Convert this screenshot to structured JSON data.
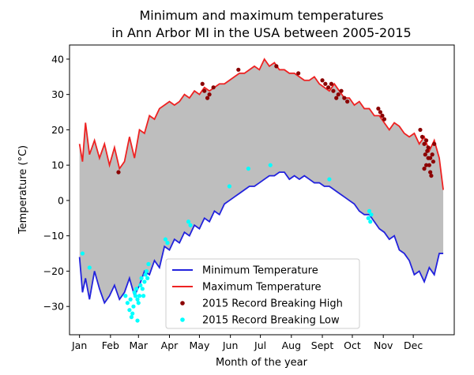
{
  "chart_data": {
    "type": "line",
    "title_line1": "Minimum and maximum temperatures",
    "title_line2": "in Ann Arbor MI in the USA between 2005-2015",
    "xlabel": "Month of the year",
    "ylabel": "Temperature (°C)",
    "xlim": [
      -10,
      375
    ],
    "ylim": [
      -38,
      44
    ],
    "yticks": [
      -30,
      -20,
      -10,
      0,
      10,
      20,
      30,
      40
    ],
    "month_ticks": [
      {
        "label": "Jan",
        "day": 0
      },
      {
        "label": "Feb",
        "day": 31
      },
      {
        "label": "Mar",
        "day": 59
      },
      {
        "label": "Apr",
        "day": 90
      },
      {
        "label": "May",
        "day": 120
      },
      {
        "label": "Jun",
        "day": 151
      },
      {
        "label": "Jul",
        "day": 181
      },
      {
        "label": "Aug",
        "day": 212
      },
      {
        "label": "Sept",
        "day": 243
      },
      {
        "label": "Oct",
        "day": 273
      },
      {
        "label": "Nov",
        "day": 304
      },
      {
        "label": "Dec",
        "day": 334
      }
    ],
    "series": [
      {
        "name": "Minimum Temperature",
        "color": "#2222dd",
        "x": [
          0,
          3,
          6,
          10,
          15,
          20,
          25,
          30,
          35,
          40,
          45,
          50,
          55,
          60,
          65,
          70,
          75,
          80,
          85,
          90,
          95,
          100,
          105,
          110,
          115,
          120,
          125,
          130,
          135,
          140,
          145,
          150,
          155,
          160,
          165,
          170,
          175,
          180,
          185,
          190,
          195,
          200,
          205,
          210,
          215,
          220,
          225,
          230,
          235,
          240,
          245,
          250,
          255,
          260,
          265,
          270,
          275,
          280,
          285,
          290,
          295,
          300,
          305,
          310,
          315,
          320,
          325,
          330,
          335,
          340,
          345,
          350,
          355,
          360,
          364
        ],
        "values": [
          -16,
          -26,
          -22,
          -28,
          -20,
          -25,
          -29,
          -27,
          -24,
          -28,
          -26,
          -22,
          -27,
          -24,
          -20,
          -21,
          -17,
          -19,
          -13,
          -14,
          -11,
          -12,
          -9,
          -10,
          -7,
          -8,
          -5,
          -6,
          -3,
          -4,
          -1,
          0,
          1,
          2,
          3,
          4,
          4,
          5,
          6,
          7,
          7,
          8,
          8,
          6,
          7,
          6,
          7,
          6,
          5,
          5,
          4,
          4,
          3,
          2,
          1,
          0,
          -1,
          -3,
          -4,
          -4,
          -6,
          -8,
          -9,
          -11,
          -10,
          -14,
          -15,
          -17,
          -21,
          -20,
          -23,
          -19,
          -21,
          -15,
          -15
        ]
      },
      {
        "name": "Maximum Temperature",
        "color": "#ee2222",
        "x": [
          0,
          3,
          6,
          10,
          15,
          20,
          25,
          30,
          35,
          40,
          45,
          50,
          55,
          60,
          65,
          70,
          75,
          80,
          85,
          90,
          95,
          100,
          105,
          110,
          115,
          120,
          125,
          130,
          135,
          140,
          145,
          150,
          155,
          160,
          165,
          170,
          175,
          180,
          185,
          190,
          195,
          200,
          205,
          210,
          215,
          220,
          225,
          230,
          235,
          240,
          245,
          250,
          255,
          260,
          265,
          270,
          275,
          280,
          285,
          290,
          295,
          300,
          305,
          310,
          315,
          320,
          325,
          330,
          335,
          340,
          345,
          350,
          355,
          360,
          364
        ],
        "values": [
          16,
          11,
          22,
          13,
          17,
          12,
          16,
          10,
          15,
          9,
          11,
          18,
          12,
          20,
          19,
          24,
          23,
          26,
          27,
          28,
          27,
          28,
          30,
          29,
          31,
          30,
          32,
          31,
          32,
          33,
          33,
          34,
          35,
          36,
          36,
          37,
          38,
          37,
          40,
          38,
          39,
          37,
          37,
          36,
          36,
          35,
          34,
          34,
          35,
          33,
          32,
          31,
          33,
          31,
          29,
          29,
          27,
          28,
          26,
          26,
          24,
          24,
          22,
          20,
          22,
          21,
          19,
          18,
          19,
          16,
          18,
          14,
          17,
          12,
          3
        ]
      }
    ],
    "scatter": [
      {
        "name": "2015 Record Breaking High",
        "color": "#8b0000",
        "points": [
          [
            39,
            8
          ],
          [
            123,
            33
          ],
          [
            125,
            31
          ],
          [
            128,
            29
          ],
          [
            130,
            30
          ],
          [
            134,
            32
          ],
          [
            159,
            37
          ],
          [
            197,
            38
          ],
          [
            219,
            36
          ],
          [
            243,
            34
          ],
          [
            246,
            33
          ],
          [
            249,
            32
          ],
          [
            252,
            33
          ],
          [
            254,
            31
          ],
          [
            257,
            29
          ],
          [
            259,
            30
          ],
          [
            262,
            31
          ],
          [
            265,
            29
          ],
          [
            268,
            28
          ],
          [
            299,
            26
          ],
          [
            301,
            25
          ],
          [
            303,
            24
          ],
          [
            305,
            23
          ],
          [
            341,
            20
          ],
          [
            343,
            18
          ],
          [
            345,
            16
          ],
          [
            346,
            13
          ],
          [
            347,
            17
          ],
          [
            348,
            14
          ],
          [
            349,
            12
          ],
          [
            350,
            10
          ],
          [
            351,
            8
          ],
          [
            352,
            7
          ],
          [
            353,
            13
          ],
          [
            354,
            11
          ],
          [
            355,
            16
          ],
          [
            345,
            9
          ],
          [
            347,
            10
          ],
          [
            349,
            15
          ],
          [
            351,
            12
          ]
        ]
      },
      {
        "name": "2015 Record Breaking Low",
        "color": "#00ffff",
        "points": [
          [
            3,
            -15
          ],
          [
            10,
            -19
          ],
          [
            46,
            -27
          ],
          [
            48,
            -29
          ],
          [
            50,
            -31
          ],
          [
            51,
            -28
          ],
          [
            52,
            -33
          ],
          [
            54,
            -30
          ],
          [
            55,
            -26
          ],
          [
            56,
            -27
          ],
          [
            57,
            -25
          ],
          [
            58,
            -28
          ],
          [
            59,
            -29
          ],
          [
            60,
            -27
          ],
          [
            61,
            -24
          ],
          [
            62,
            -22
          ],
          [
            63,
            -25
          ],
          [
            64,
            -27
          ],
          [
            65,
            -23
          ],
          [
            66,
            -21
          ],
          [
            67,
            -20
          ],
          [
            68,
            -22
          ],
          [
            69,
            -18
          ],
          [
            58,
            -34
          ],
          [
            53,
            -32
          ],
          [
            86,
            -11
          ],
          [
            88,
            -12
          ],
          [
            109,
            -6
          ],
          [
            111,
            -7
          ],
          [
            150,
            4
          ],
          [
            169,
            9
          ],
          [
            191,
            10
          ],
          [
            250,
            6
          ],
          [
            289,
            -5
          ],
          [
            290,
            -3
          ],
          [
            291,
            -6
          ],
          [
            292,
            -4
          ]
        ]
      }
    ],
    "legend": {
      "placement": "lower-center",
      "entries": [
        {
          "label": "Minimum Temperature",
          "kind": "line",
          "color": "#2222dd"
        },
        {
          "label": "Maximum Temperature",
          "kind": "line",
          "color": "#ee2222"
        },
        {
          "label": "2015 Record Breaking High",
          "kind": "dot",
          "color": "#8b0000"
        },
        {
          "label": "2015 Record Breaking Low",
          "kind": "dot",
          "color": "#00ffff"
        }
      ]
    },
    "fill_between_color": "#bebebe",
    "grid": false
  }
}
